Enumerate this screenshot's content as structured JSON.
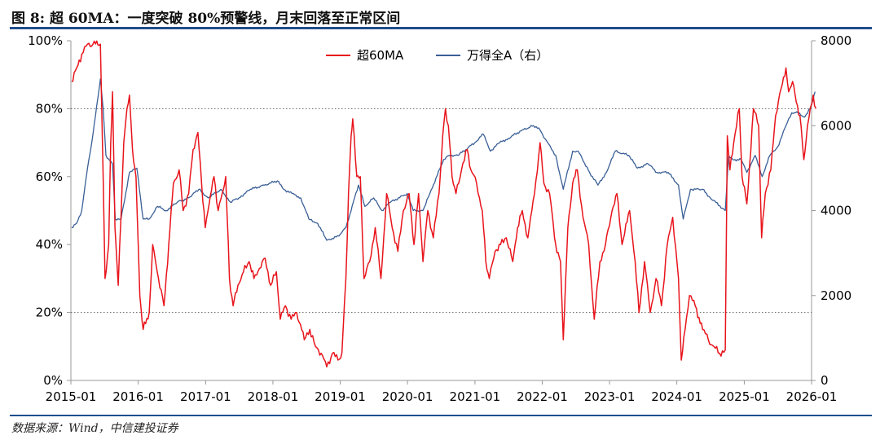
{
  "figure": {
    "title": "图 8: 超 60MA：一度突破 80%预警线，月末回落至正常区间",
    "source": "数据来源：Wind，中信建投证券"
  },
  "chart_data": {
    "type": "line",
    "x_tick_labels": [
      "2015-01",
      "2016-01",
      "2017-01",
      "2018-01",
      "2019-01",
      "2020-01",
      "2021-01",
      "2022-01",
      "2023-01",
      "2024-01",
      "2025-01",
      "2026-01"
    ],
    "x_range": [
      "2015-01",
      "2026-01"
    ],
    "y_left": {
      "ylim": [
        0,
        100
      ],
      "ticks": [
        0,
        20,
        40,
        60,
        80,
        100
      ],
      "tick_labels": [
        "0%",
        "20%",
        "40%",
        "60%",
        "80%",
        "100%"
      ]
    },
    "y_right": {
      "ylim": [
        0,
        8000
      ],
      "ticks": [
        0,
        2000,
        4000,
        6000,
        8000
      ],
      "tick_labels": [
        "0",
        "2000",
        "4000",
        "6000",
        "8000"
      ]
    },
    "reference_lines": [
      {
        "axis": "left",
        "value": 80,
        "style": "dotted"
      },
      {
        "axis": "left",
        "value": 20,
        "style": "dotted"
      }
    ],
    "legend_position": "top-center",
    "grid": false,
    "series": [
      {
        "name": "超60MA",
        "axis": "left",
        "color": "#e8141b",
        "points": [
          [
            "2015-01-05",
            88
          ],
          [
            "2015-02-01",
            92
          ],
          [
            "2015-03-01",
            96
          ],
          [
            "2015-04-01",
            99
          ],
          [
            "2015-05-01",
            99
          ],
          [
            "2015-06-10",
            99
          ],
          [
            "2015-06-25",
            60
          ],
          [
            "2015-07-05",
            30
          ],
          [
            "2015-07-25",
            40
          ],
          [
            "2015-08-05",
            70
          ],
          [
            "2015-08-15",
            85
          ],
          [
            "2015-08-28",
            45
          ],
          [
            "2015-09-15",
            28
          ],
          [
            "2015-10-15",
            70
          ],
          [
            "2015-11-01",
            80
          ],
          [
            "2015-11-15",
            84
          ],
          [
            "2015-12-01",
            68
          ],
          [
            "2015-12-20",
            60
          ],
          [
            "2016-01-10",
            25
          ],
          [
            "2016-01-28",
            15
          ],
          [
            "2016-03-01",
            20
          ],
          [
            "2016-03-20",
            40
          ],
          [
            "2016-04-20",
            30
          ],
          [
            "2016-05-20",
            22
          ],
          [
            "2016-06-15",
            40
          ],
          [
            "2016-07-10",
            58
          ],
          [
            "2016-08-10",
            62
          ],
          [
            "2016-09-01",
            50
          ],
          [
            "2016-10-01",
            55
          ],
          [
            "2016-10-25",
            68
          ],
          [
            "2016-11-20",
            73
          ],
          [
            "2016-12-10",
            58
          ],
          [
            "2016-12-30",
            45
          ],
          [
            "2017-01-20",
            52
          ],
          [
            "2017-02-15",
            60
          ],
          [
            "2017-03-10",
            50
          ],
          [
            "2017-04-01",
            55
          ],
          [
            "2017-04-20",
            60
          ],
          [
            "2017-05-10",
            30
          ],
          [
            "2017-05-30",
            22
          ],
          [
            "2017-06-25",
            28
          ],
          [
            "2017-07-25",
            32
          ],
          [
            "2017-08-25",
            35
          ],
          [
            "2017-09-20",
            30
          ],
          [
            "2017-10-20",
            33
          ],
          [
            "2017-11-20",
            36
          ],
          [
            "2017-12-20",
            28
          ],
          [
            "2018-01-20",
            32
          ],
          [
            "2018-02-10",
            18
          ],
          [
            "2018-03-10",
            22
          ],
          [
            "2018-04-10",
            18
          ],
          [
            "2018-05-10",
            20
          ],
          [
            "2018-06-20",
            12
          ],
          [
            "2018-07-20",
            15
          ],
          [
            "2018-08-20",
            10
          ],
          [
            "2018-09-20",
            8
          ],
          [
            "2018-10-20",
            4
          ],
          [
            "2018-11-20",
            8
          ],
          [
            "2018-12-20",
            6
          ],
          [
            "2019-01-10",
            8
          ],
          [
            "2019-02-01",
            30
          ],
          [
            "2019-02-15",
            55
          ],
          [
            "2019-03-01",
            72
          ],
          [
            "2019-03-10",
            77
          ],
          [
            "2019-04-01",
            60
          ],
          [
            "2019-04-20",
            60
          ],
          [
            "2019-05-10",
            30
          ],
          [
            "2019-06-10",
            35
          ],
          [
            "2019-07-10",
            45
          ],
          [
            "2019-08-10",
            30
          ],
          [
            "2019-09-10",
            55
          ],
          [
            "2019-10-10",
            45
          ],
          [
            "2019-11-10",
            38
          ],
          [
            "2019-12-10",
            50
          ],
          [
            "2020-01-10",
            55
          ],
          [
            "2020-02-05",
            40
          ],
          [
            "2020-03-01",
            55
          ],
          [
            "2020-03-25",
            35
          ],
          [
            "2020-04-20",
            50
          ],
          [
            "2020-05-20",
            42
          ],
          [
            "2020-06-20",
            55
          ],
          [
            "2020-07-10",
            72
          ],
          [
            "2020-07-25",
            80
          ],
          [
            "2020-08-10",
            75
          ],
          [
            "2020-08-30",
            60
          ],
          [
            "2020-09-20",
            55
          ],
          [
            "2020-10-20",
            62
          ],
          [
            "2020-11-20",
            68
          ],
          [
            "2020-12-10",
            62
          ],
          [
            "2021-01-10",
            58
          ],
          [
            "2021-02-10",
            50
          ],
          [
            "2021-03-01",
            35
          ],
          [
            "2021-03-20",
            30
          ],
          [
            "2021-04-20",
            38
          ],
          [
            "2021-05-20",
            40
          ],
          [
            "2021-06-20",
            42
          ],
          [
            "2021-07-25",
            35
          ],
          [
            "2021-08-20",
            45
          ],
          [
            "2021-09-15",
            50
          ],
          [
            "2021-10-15",
            42
          ],
          [
            "2021-11-20",
            55
          ],
          [
            "2021-12-20",
            70
          ],
          [
            "2022-01-10",
            58
          ],
          [
            "2022-02-10",
            55
          ],
          [
            "2022-03-15",
            40
          ],
          [
            "2022-04-10",
            35
          ],
          [
            "2022-04-25",
            12
          ],
          [
            "2022-05-20",
            45
          ],
          [
            "2022-06-15",
            58
          ],
          [
            "2022-07-10",
            62
          ],
          [
            "2022-08-10",
            48
          ],
          [
            "2022-09-10",
            40
          ],
          [
            "2022-10-10",
            18
          ],
          [
            "2022-11-10",
            35
          ],
          [
            "2022-12-10",
            40
          ],
          [
            "2023-01-15",
            50
          ],
          [
            "2023-02-10",
            55
          ],
          [
            "2023-03-10",
            40
          ],
          [
            "2023-04-20",
            50
          ],
          [
            "2023-05-20",
            35
          ],
          [
            "2023-06-10",
            20
          ],
          [
            "2023-07-10",
            35
          ],
          [
            "2023-08-10",
            20
          ],
          [
            "2023-09-10",
            30
          ],
          [
            "2023-10-10",
            22
          ],
          [
            "2023-11-10",
            40
          ],
          [
            "2023-12-10",
            48
          ],
          [
            "2024-01-10",
            30
          ],
          [
            "2024-01-25",
            6
          ],
          [
            "2024-02-15",
            15
          ],
          [
            "2024-03-10",
            25
          ],
          [
            "2024-04-10",
            22
          ],
          [
            "2024-05-20",
            15
          ],
          [
            "2024-06-20",
            12
          ],
          [
            "2024-07-20",
            10
          ],
          [
            "2024-08-20",
            8
          ],
          [
            "2024-09-20",
            9
          ],
          [
            "2024-10-01",
            72
          ],
          [
            "2024-10-15",
            62
          ],
          [
            "2024-11-05",
            70
          ],
          [
            "2024-12-05",
            80
          ],
          [
            "2024-12-20",
            60
          ],
          [
            "2025-01-15",
            52
          ],
          [
            "2025-02-20",
            80
          ],
          [
            "2025-03-20",
            75
          ],
          [
            "2025-04-05",
            42
          ],
          [
            "2025-04-25",
            55
          ],
          [
            "2025-05-25",
            62
          ],
          [
            "2025-06-20",
            78
          ],
          [
            "2025-07-20",
            86
          ],
          [
            "2025-08-15",
            92
          ],
          [
            "2025-08-30",
            85
          ],
          [
            "2025-09-20",
            88
          ],
          [
            "2025-10-10",
            82
          ],
          [
            "2025-10-30",
            78
          ],
          [
            "2025-11-20",
            65
          ],
          [
            "2025-12-10",
            75
          ],
          [
            "2026-01-10",
            84
          ],
          [
            "2026-01-25",
            80
          ]
        ]
      },
      {
        "name": "万得全A（右）",
        "axis": "right",
        "color": "#3a5f96",
        "points": [
          [
            "2015-01-05",
            3600
          ],
          [
            "2015-02-01",
            3700
          ],
          [
            "2015-03-01",
            4000
          ],
          [
            "2015-04-01",
            5000
          ],
          [
            "2015-05-01",
            5800
          ],
          [
            "2015-06-10",
            7100
          ],
          [
            "2015-06-25",
            6400
          ],
          [
            "2015-07-10",
            5300
          ],
          [
            "2015-08-15",
            5100
          ],
          [
            "2015-08-30",
            3800
          ],
          [
            "2015-09-30",
            3800
          ],
          [
            "2015-11-15",
            4900
          ],
          [
            "2015-12-25",
            5000
          ],
          [
            "2016-01-28",
            3800
          ],
          [
            "2016-03-01",
            3800
          ],
          [
            "2016-04-15",
            4100
          ],
          [
            "2016-06-01",
            4000
          ],
          [
            "2016-08-01",
            4200
          ],
          [
            "2016-10-01",
            4300
          ],
          [
            "2016-11-25",
            4500
          ],
          [
            "2017-01-15",
            4300
          ],
          [
            "2017-03-25",
            4500
          ],
          [
            "2017-05-15",
            4200
          ],
          [
            "2017-07-01",
            4300
          ],
          [
            "2017-09-01",
            4500
          ],
          [
            "2017-11-15",
            4600
          ],
          [
            "2018-01-25",
            4700
          ],
          [
            "2018-03-01",
            4500
          ],
          [
            "2018-04-15",
            4400
          ],
          [
            "2018-06-01",
            4300
          ],
          [
            "2018-07-15",
            3800
          ],
          [
            "2018-09-01",
            3700
          ],
          [
            "2018-10-20",
            3300
          ],
          [
            "2018-12-25",
            3400
          ],
          [
            "2019-02-01",
            3600
          ],
          [
            "2019-04-10",
            4600
          ],
          [
            "2019-05-15",
            4100
          ],
          [
            "2019-07-01",
            4300
          ],
          [
            "2019-08-15",
            4000
          ],
          [
            "2019-10-01",
            4200
          ],
          [
            "2019-12-31",
            4400
          ],
          [
            "2020-02-01",
            4000
          ],
          [
            "2020-03-25",
            4000
          ],
          [
            "2020-05-01",
            4400
          ],
          [
            "2020-07-15",
            5200
          ],
          [
            "2020-08-15",
            5300
          ],
          [
            "2020-10-01",
            5300
          ],
          [
            "2020-12-31",
            5600
          ],
          [
            "2021-02-15",
            5800
          ],
          [
            "2021-03-25",
            5400
          ],
          [
            "2021-05-15",
            5600
          ],
          [
            "2021-07-01",
            5700
          ],
          [
            "2021-09-15",
            5900
          ],
          [
            "2021-11-15",
            6000
          ],
          [
            "2021-12-20",
            5900
          ],
          [
            "2022-01-15",
            5700
          ],
          [
            "2022-03-15",
            5300
          ],
          [
            "2022-04-25",
            4500
          ],
          [
            "2022-06-15",
            5400
          ],
          [
            "2022-07-15",
            5400
          ],
          [
            "2022-09-15",
            4900
          ],
          [
            "2022-10-30",
            4600
          ],
          [
            "2022-12-15",
            4900
          ],
          [
            "2023-02-01",
            5400
          ],
          [
            "2023-04-15",
            5300
          ],
          [
            "2023-06-01",
            5000
          ],
          [
            "2023-07-30",
            5100
          ],
          [
            "2023-09-15",
            4900
          ],
          [
            "2023-11-15",
            4900
          ],
          [
            "2024-01-10",
            4600
          ],
          [
            "2024-02-05",
            3800
          ],
          [
            "2024-03-15",
            4500
          ],
          [
            "2024-05-20",
            4500
          ],
          [
            "2024-07-01",
            4300
          ],
          [
            "2024-09-20",
            4000
          ],
          [
            "2024-10-08",
            5300
          ],
          [
            "2024-10-30",
            5200
          ],
          [
            "2024-12-15",
            5200
          ],
          [
            "2025-01-15",
            4900
          ],
          [
            "2025-03-01",
            5300
          ],
          [
            "2025-04-08",
            4800
          ],
          [
            "2025-05-20",
            5300
          ],
          [
            "2025-07-01",
            5500
          ],
          [
            "2025-08-15",
            6000
          ],
          [
            "2025-09-15",
            6300
          ],
          [
            "2025-10-20",
            6300
          ],
          [
            "2025-11-25",
            6200
          ],
          [
            "2025-12-25",
            6400
          ],
          [
            "2026-01-20",
            6800
          ]
        ]
      }
    ]
  }
}
